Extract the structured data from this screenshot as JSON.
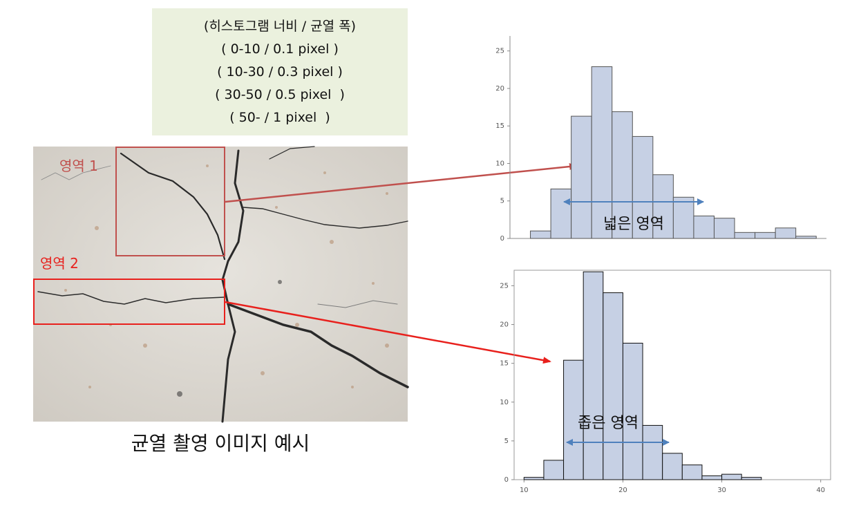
{
  "legend": {
    "lines": [
      "(히스토그램 너비 / 균열 폭)",
      "( 0-10 / 0.1 pixel )",
      "( 10-30 / 0.3 pixel )",
      "( 30-50 / 0.5 pixel  )",
      "( 50- / 1 pixel  )"
    ]
  },
  "photo": {
    "caption": "균열 촬영 이미지 예시",
    "region1_label": "영역 1",
    "region2_label": "영역 2",
    "region1_color": "#c0504d",
    "region2_color": "#e8201c"
  },
  "chart_data": [
    {
      "type": "bar",
      "annotation": "넓은 영역",
      "x_bins_start": [
        10,
        12,
        14,
        16,
        18,
        20,
        22,
        24,
        26,
        28,
        30,
        32,
        34,
        36,
        38
      ],
      "values": [
        0,
        1,
        6.6,
        16.3,
        22.9,
        16.9,
        13.6,
        8.5,
        5.5,
        3,
        2.7,
        0.8,
        0.8,
        1.4,
        0.3
      ],
      "xlim": [
        10,
        41
      ],
      "ylim": [
        0,
        27
      ],
      "yticks": [
        "0",
        "5",
        "10",
        "15",
        "20",
        "25"
      ],
      "bar_color": "#c6d0e4",
      "bar_edge": "#555555",
      "arrow_color": "#4f81bd"
    },
    {
      "type": "bar",
      "annotation": "좁은 영역",
      "x_bins_start": [
        10,
        12,
        14,
        16,
        18,
        20,
        22,
        24,
        26,
        28,
        30,
        32,
        34,
        36,
        38
      ],
      "values": [
        0.3,
        2.5,
        15.4,
        26.8,
        24.1,
        17.6,
        7,
        3.4,
        1.9,
        0.5,
        0.7,
        0.3,
        0,
        0,
        0
      ],
      "xlim": [
        9,
        41
      ],
      "ylim": [
        0,
        27
      ],
      "xticks": [
        "10",
        "20",
        "30",
        "40"
      ],
      "yticks": [
        "0",
        "5",
        "10",
        "15",
        "20",
        "25"
      ],
      "bar_color": "#c6d0e4",
      "bar_edge": "#111111",
      "arrow_color": "#4f81bd"
    }
  ]
}
